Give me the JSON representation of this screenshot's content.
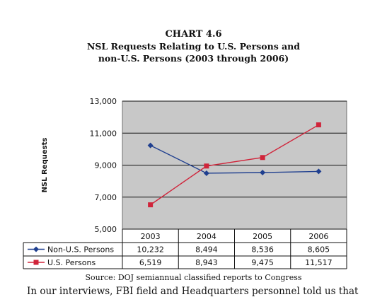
{
  "chart_number": "CHART 4.6",
  "chart_data": {
    "type": "line",
    "title": "NSL Requests Relating to U.S. Persons and\nnon-U.S. Persons (2003 through 2006)",
    "ylabel": "NSL Requests",
    "xlabel": "",
    "categories": [
      "2003",
      "2004",
      "2005",
      "2006"
    ],
    "ylim": [
      5000,
      13000
    ],
    "yticks": [
      "5,000",
      "7,000",
      "9,000",
      "11,000",
      "13,000"
    ],
    "ytick_values": [
      5000,
      7000,
      9000,
      11000,
      13000
    ],
    "grid": true,
    "legend": "data-table",
    "series": [
      {
        "name": "Non-U.S. Persons",
        "values": [
          10232,
          8494,
          8536,
          8605
        ],
        "labels": [
          "10,232",
          "8,494",
          "8,536",
          "8,605"
        ],
        "color": "#1f3f8f",
        "marker": "diamond"
      },
      {
        "name": "U.S. Persons",
        "values": [
          6519,
          8943,
          9475,
          11517
        ],
        "labels": [
          "6,519",
          "8,943",
          "9,475",
          "11,517"
        ],
        "color": "#d0243a",
        "marker": "square"
      }
    ]
  },
  "source": "Source:  DOJ semiannual classified reports to Congress",
  "body_text": "In our interviews, FBI field and Headquarters personnel told us that",
  "colors": {
    "plot_bg": "#c8c8c8",
    "grid": "#111111"
  }
}
